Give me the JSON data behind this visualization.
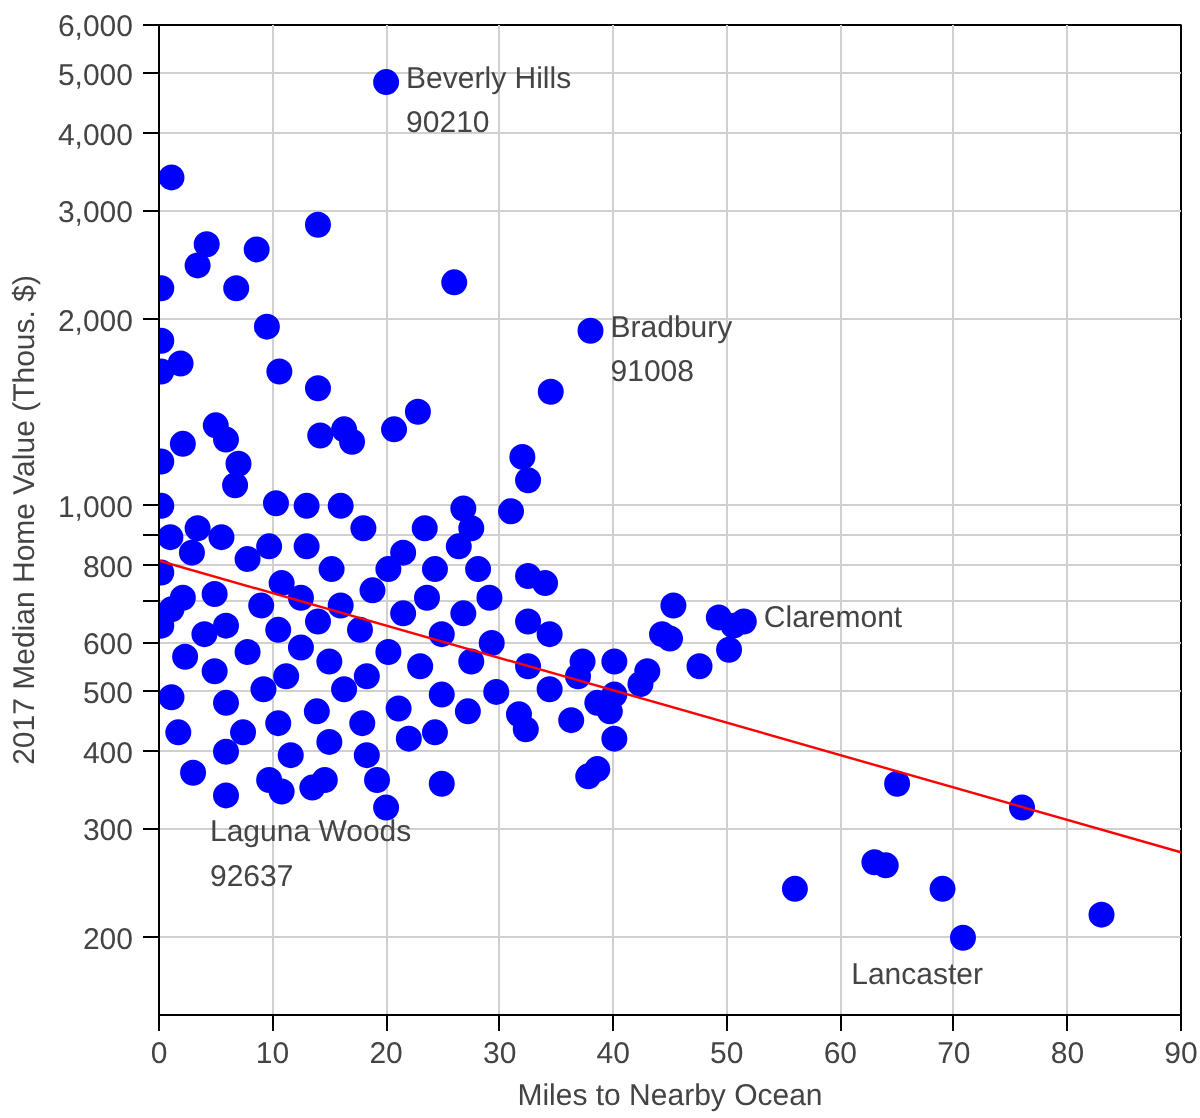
{
  "chart_data": {
    "type": "scatter",
    "xlabel": "Miles to Nearby Ocean",
    "ylabel": "2017 Median Home Value (Thous. $)",
    "log": "y",
    "grid": true,
    "xlim": [
      0,
      90
    ],
    "xticks": [
      0,
      10,
      20,
      30,
      40,
      50,
      60,
      70,
      80,
      90
    ],
    "ylim": [
      150,
      6000
    ],
    "yticks": [
      200,
      300,
      400,
      500,
      600,
      {
        "value": 700,
        "label": null
      },
      800,
      {
        "value": 900,
        "label": null
      },
      {
        "value": 1000,
        "label": "1,000"
      },
      {
        "value": 2000,
        "label": "2,000"
      },
      {
        "value": 3000,
        "label": "3,000"
      },
      {
        "value": 4000,
        "label": "4,000"
      },
      {
        "value": 5000,
        "label": "5,000"
      },
      {
        "value": 6000,
        "label": "6,000"
      }
    ],
    "series": [
      {
        "color": "#0000ff",
        "marker": "circle",
        "x": [
          20,
          1.1,
          14,
          4.2,
          8.6,
          3.4,
          6.8,
          26,
          0.2,
          9.5,
          38,
          0.2,
          1.9,
          0.2,
          10.6,
          14,
          34.5,
          5,
          22.8,
          14.2,
          16.3,
          20.7,
          17,
          32,
          2.1,
          5.9,
          0.2,
          7,
          32.5,
          6.7,
          10.3,
          31,
          0.2,
          16,
          13,
          26.8,
          23.4,
          27.5,
          3.4,
          18,
          1,
          5.5,
          13,
          9.7,
          21.5,
          26.4,
          2.9,
          7.8,
          15.2,
          20.2,
          24.3,
          28.1,
          32.5,
          0.2,
          10.8,
          18.8,
          4.9,
          2.1,
          12.5,
          23.6,
          29.1,
          34,
          9,
          16,
          1.1,
          21.5,
          26.8,
          14,
          5.9,
          32.5,
          10.5,
          17.7,
          4,
          24.9,
          29.3,
          34.4,
          12.5,
          7.8,
          20.2,
          2.3,
          15,
          27.5,
          23,
          32.5,
          37.3,
          4.9,
          11.2,
          18.3,
          36.9,
          40.1,
          9.2,
          16.3,
          24.9,
          29.7,
          34.4,
          1.1,
          5.9,
          21.1,
          13.9,
          38.6,
          27.2,
          31.7,
          10.5,
          17.9,
          7.4,
          24.3,
          1.7,
          15,
          22,
          32.3,
          39.7,
          40.1,
          36.3,
          5.9,
          11.6,
          18.3,
          3,
          9.7,
          14.6,
          19.2,
          38.6,
          37.8,
          5.9,
          10.8,
          13.5,
          24.9,
          20,
          40.1,
          0.2,
          43,
          44.3,
          45,
          45.3,
          47.6,
          49.3,
          50.2,
          50.6,
          51.5,
          42.4,
          65,
          76,
          56,
          63,
          64,
          69,
          70.8,
          83
        ],
        "values": [
          4850,
          3400,
          2850,
          2650,
          2600,
          2450,
          2250,
          2300,
          2250,
          1950,
          1920,
          1850,
          1700,
          1650,
          1650,
          1550,
          1530,
          1350,
          1420,
          1300,
          1330,
          1330,
          1270,
          1200,
          1260,
          1280,
          1180,
          1170,
          1100,
          1080,
          1010,
          980,
          1000,
          1000,
          1000,
          990,
          920,
          920,
          920,
          920,
          890,
          890,
          860,
          860,
          840,
          860,
          840,
          820,
          790,
          790,
          790,
          790,
          770,
          780,
          750,
          730,
          720,
          710,
          710,
          710,
          710,
          750,
          690,
          690,
          680,
          670,
          670,
          650,
          640,
          650,
          630,
          630,
          620,
          620,
          600,
          620,
          590,
          580,
          580,
          570,
          560,
          560,
          550,
          550,
          560,
          540,
          530,
          530,
          530,
          560,
          505,
          505,
          495,
          500,
          505,
          490,
          480,
          470,
          465,
          480,
          465,
          460,
          445,
          445,
          430,
          430,
          430,
          415,
          420,
          435,
          465,
          420,
          450,
          400,
          395,
          395,
          370,
          360,
          360,
          360,
          375,
          365,
          340,
          345,
          350,
          355,
          325,
          495,
          640,
          540,
          620,
          610,
          690,
          550,
          660,
          585,
          640,
          650,
          515,
          355,
          325,
          240,
          265,
          262,
          240,
          200,
          218
        ]
      },
      {
        "type": "line",
        "color": "#ff0000",
        "x": [
          0,
          90
        ],
        "values": [
          815,
          275
        ]
      }
    ],
    "annotations": [
      {
        "text": "Beverly Hills\n90210",
        "x": 20,
        "y": 4850
      },
      {
        "text": "Bradbury\n91008",
        "x": 38,
        "y": 1920
      },
      {
        "text": "Claremont",
        "x": 51.5,
        "y": 650
      },
      {
        "text": "Laguna Woods\n92637",
        "x": 5.9,
        "y": 340
      },
      {
        "text": "Lancaster",
        "x": 70.8,
        "y": 200
      }
    ]
  }
}
